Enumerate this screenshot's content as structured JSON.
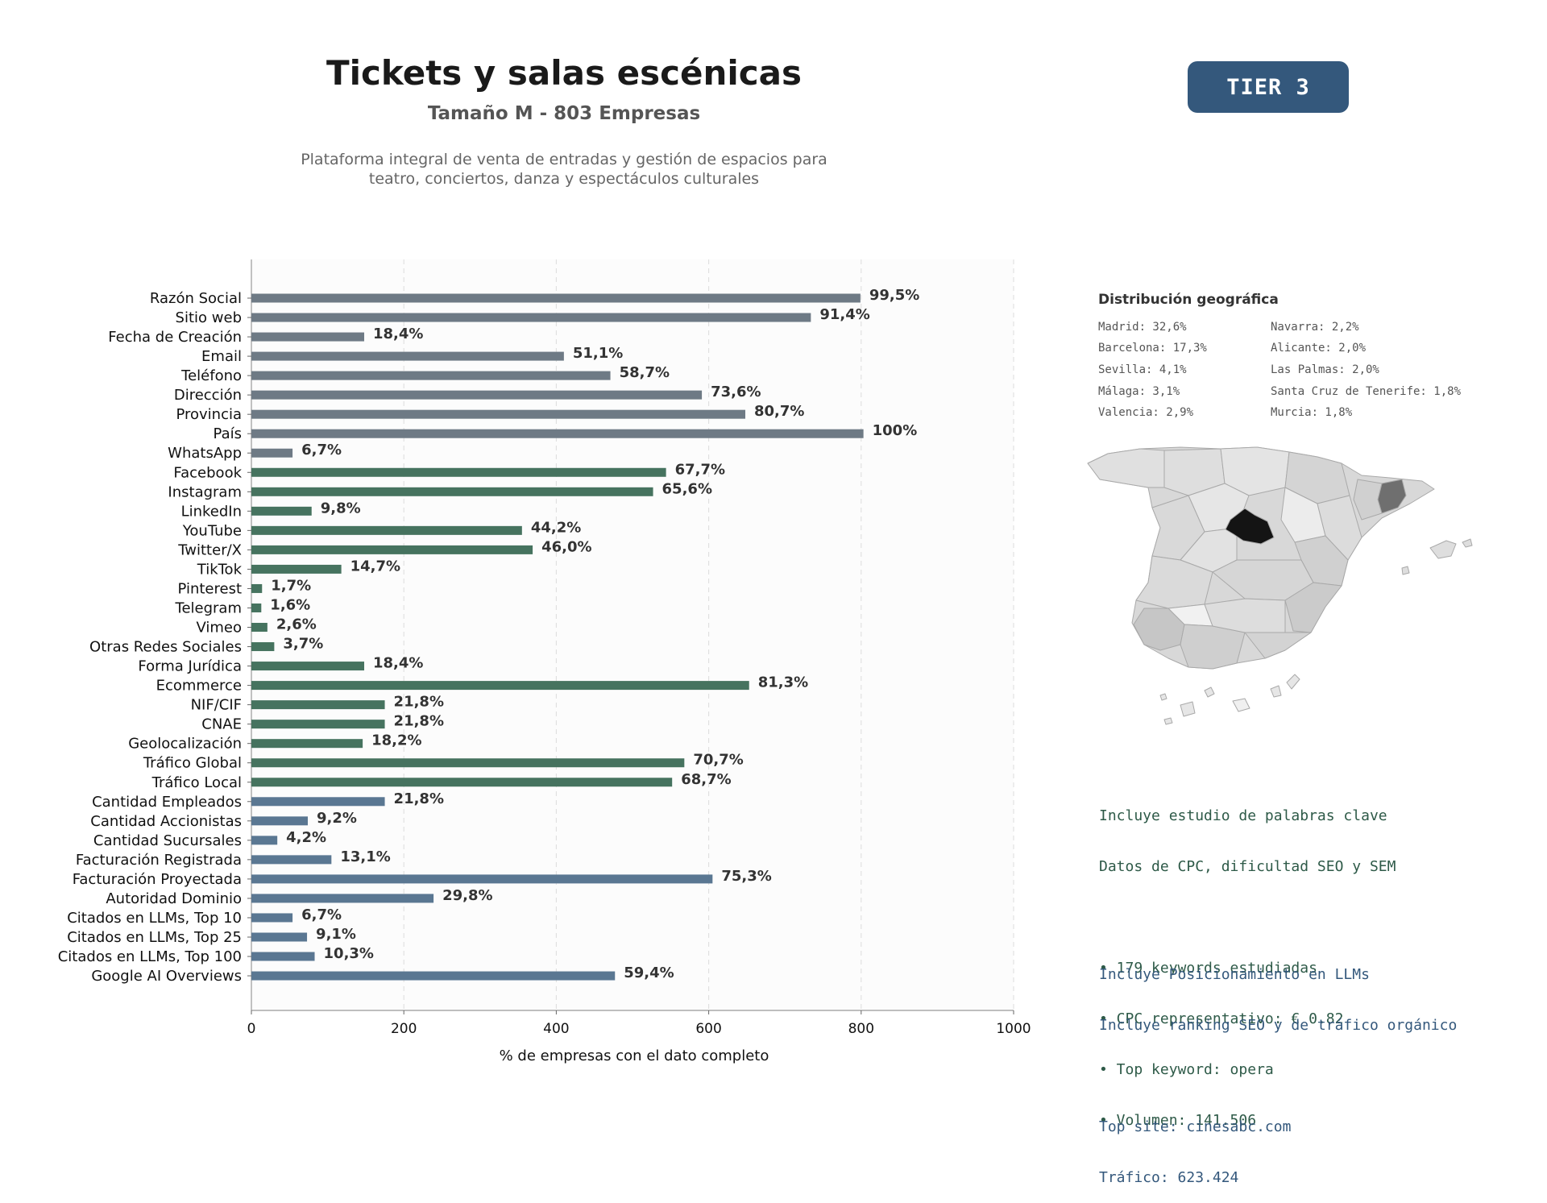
{
  "header": {
    "title": "Tickets y salas escénicas",
    "subtitle": "Tamaño M - 803 Empresas",
    "description_lines": [
      "Plataforma integral de venta de entradas y gestión de espacios para",
      "teatro, conciertos, danza y espectáculos culturales"
    ],
    "tier_label": "TIER 3",
    "tier_color": "#34587c"
  },
  "chart_data": {
    "type": "bar",
    "orientation": "horizontal",
    "xlabel": "% de empresas con el dato completo",
    "xlim": [
      0,
      1000
    ],
    "xticks": [
      0,
      200,
      400,
      600,
      800,
      1000
    ],
    "grid": "vertical dashed",
    "categories": [
      "Razón Social",
      "Sitio web",
      "Fecha de Creación",
      "Email",
      "Teléfono",
      "Dirección",
      "Provincia",
      "País",
      "WhatsApp",
      "Facebook",
      "Instagram",
      "LinkedIn",
      "YouTube",
      "Twitter/X",
      "TikTok",
      "Pinterest",
      "Telegram",
      "Vimeo",
      "Otras Redes Sociales",
      "Forma Jurídica",
      "Ecommerce",
      "NIF/CIF",
      "CNAE",
      "Geolocalización",
      "Tráfico Global",
      "Tráfico Local",
      "Cantidad Empleados",
      "Cantidad Accionistas",
      "Cantidad Sucursales",
      "Facturación Registrada",
      "Facturación Proyectada",
      "Autoridad Dominio",
      "Citados en LLMs, Top 10",
      "Citados en LLMs, Top 25",
      "Citados en LLMs, Top 100",
      "Google AI Overviews"
    ],
    "values": [
      799,
      734,
      148,
      410,
      471,
      591,
      648,
      803,
      54,
      544,
      527,
      79,
      355,
      369,
      118,
      14,
      13,
      21,
      30,
      148,
      653,
      175,
      175,
      146,
      568,
      552,
      175,
      74,
      34,
      105,
      605,
      239,
      54,
      73,
      83,
      477
    ],
    "labels": [
      "99,5%",
      "91,4%",
      "18,4%",
      "51,1%",
      "58,7%",
      "73,6%",
      "80,7%",
      "100%",
      "6,7%",
      "67,7%",
      "65,6%",
      "9,8%",
      "44,2%",
      "46,0%",
      "14,7%",
      "1,7%",
      "1,6%",
      "2,6%",
      "3,7%",
      "18,4%",
      "81,3%",
      "21,8%",
      "21,8%",
      "18,2%",
      "70,7%",
      "68,7%",
      "21,8%",
      "9,2%",
      "4,2%",
      "13,1%",
      "75,3%",
      "29,8%",
      "6,7%",
      "9,1%",
      "10,3%",
      "59,4%"
    ],
    "groups": [
      "basic",
      "basic",
      "basic",
      "basic",
      "basic",
      "basic",
      "basic",
      "basic",
      "basic",
      "digital",
      "digital",
      "digital",
      "digital",
      "digital",
      "digital",
      "digital",
      "digital",
      "digital",
      "digital",
      "digital",
      "digital",
      "digital",
      "digital",
      "digital",
      "digital",
      "digital",
      "business",
      "business",
      "business",
      "business",
      "business",
      "business",
      "business",
      "business",
      "business",
      "business"
    ],
    "colors": {
      "basic": "#6e7a85",
      "digital": "#46735f",
      "business": "#5a7792"
    }
  },
  "geo": {
    "title": "Distribución geográfica",
    "col1": [
      "Madrid: 32,6%",
      "Barcelona: 17,3%",
      "Sevilla: 4,1%",
      "Málaga: 3,1%",
      "Valencia: 2,9%"
    ],
    "col2": [
      "Navarra: 2,2%",
      "Alicante: 2,0%",
      "Las Palmas: 2,0%",
      "Santa Cruz de Tenerife: 1,8%",
      "Murcia: 1,8%"
    ]
  },
  "seo": {
    "color": "#2e5a48",
    "lines": [
      "Incluye estudio de palabras clave",
      "Datos de CPC, dificultad SEO y SEM",
      "",
      "• 179 keywords estudiadas",
      "• CPC representativo: € 0.82",
      "• Top keyword: opera",
      "• Volumen: 141.506"
    ]
  },
  "llm": {
    "color": "#34587c",
    "lines": [
      "Incluye Posicionamiento en LLMs",
      "Incluye ranking SEO y de tráfico orgánico",
      "",
      "Top site: cinesabc.com",
      "Tráfico: 623.424"
    ]
  }
}
